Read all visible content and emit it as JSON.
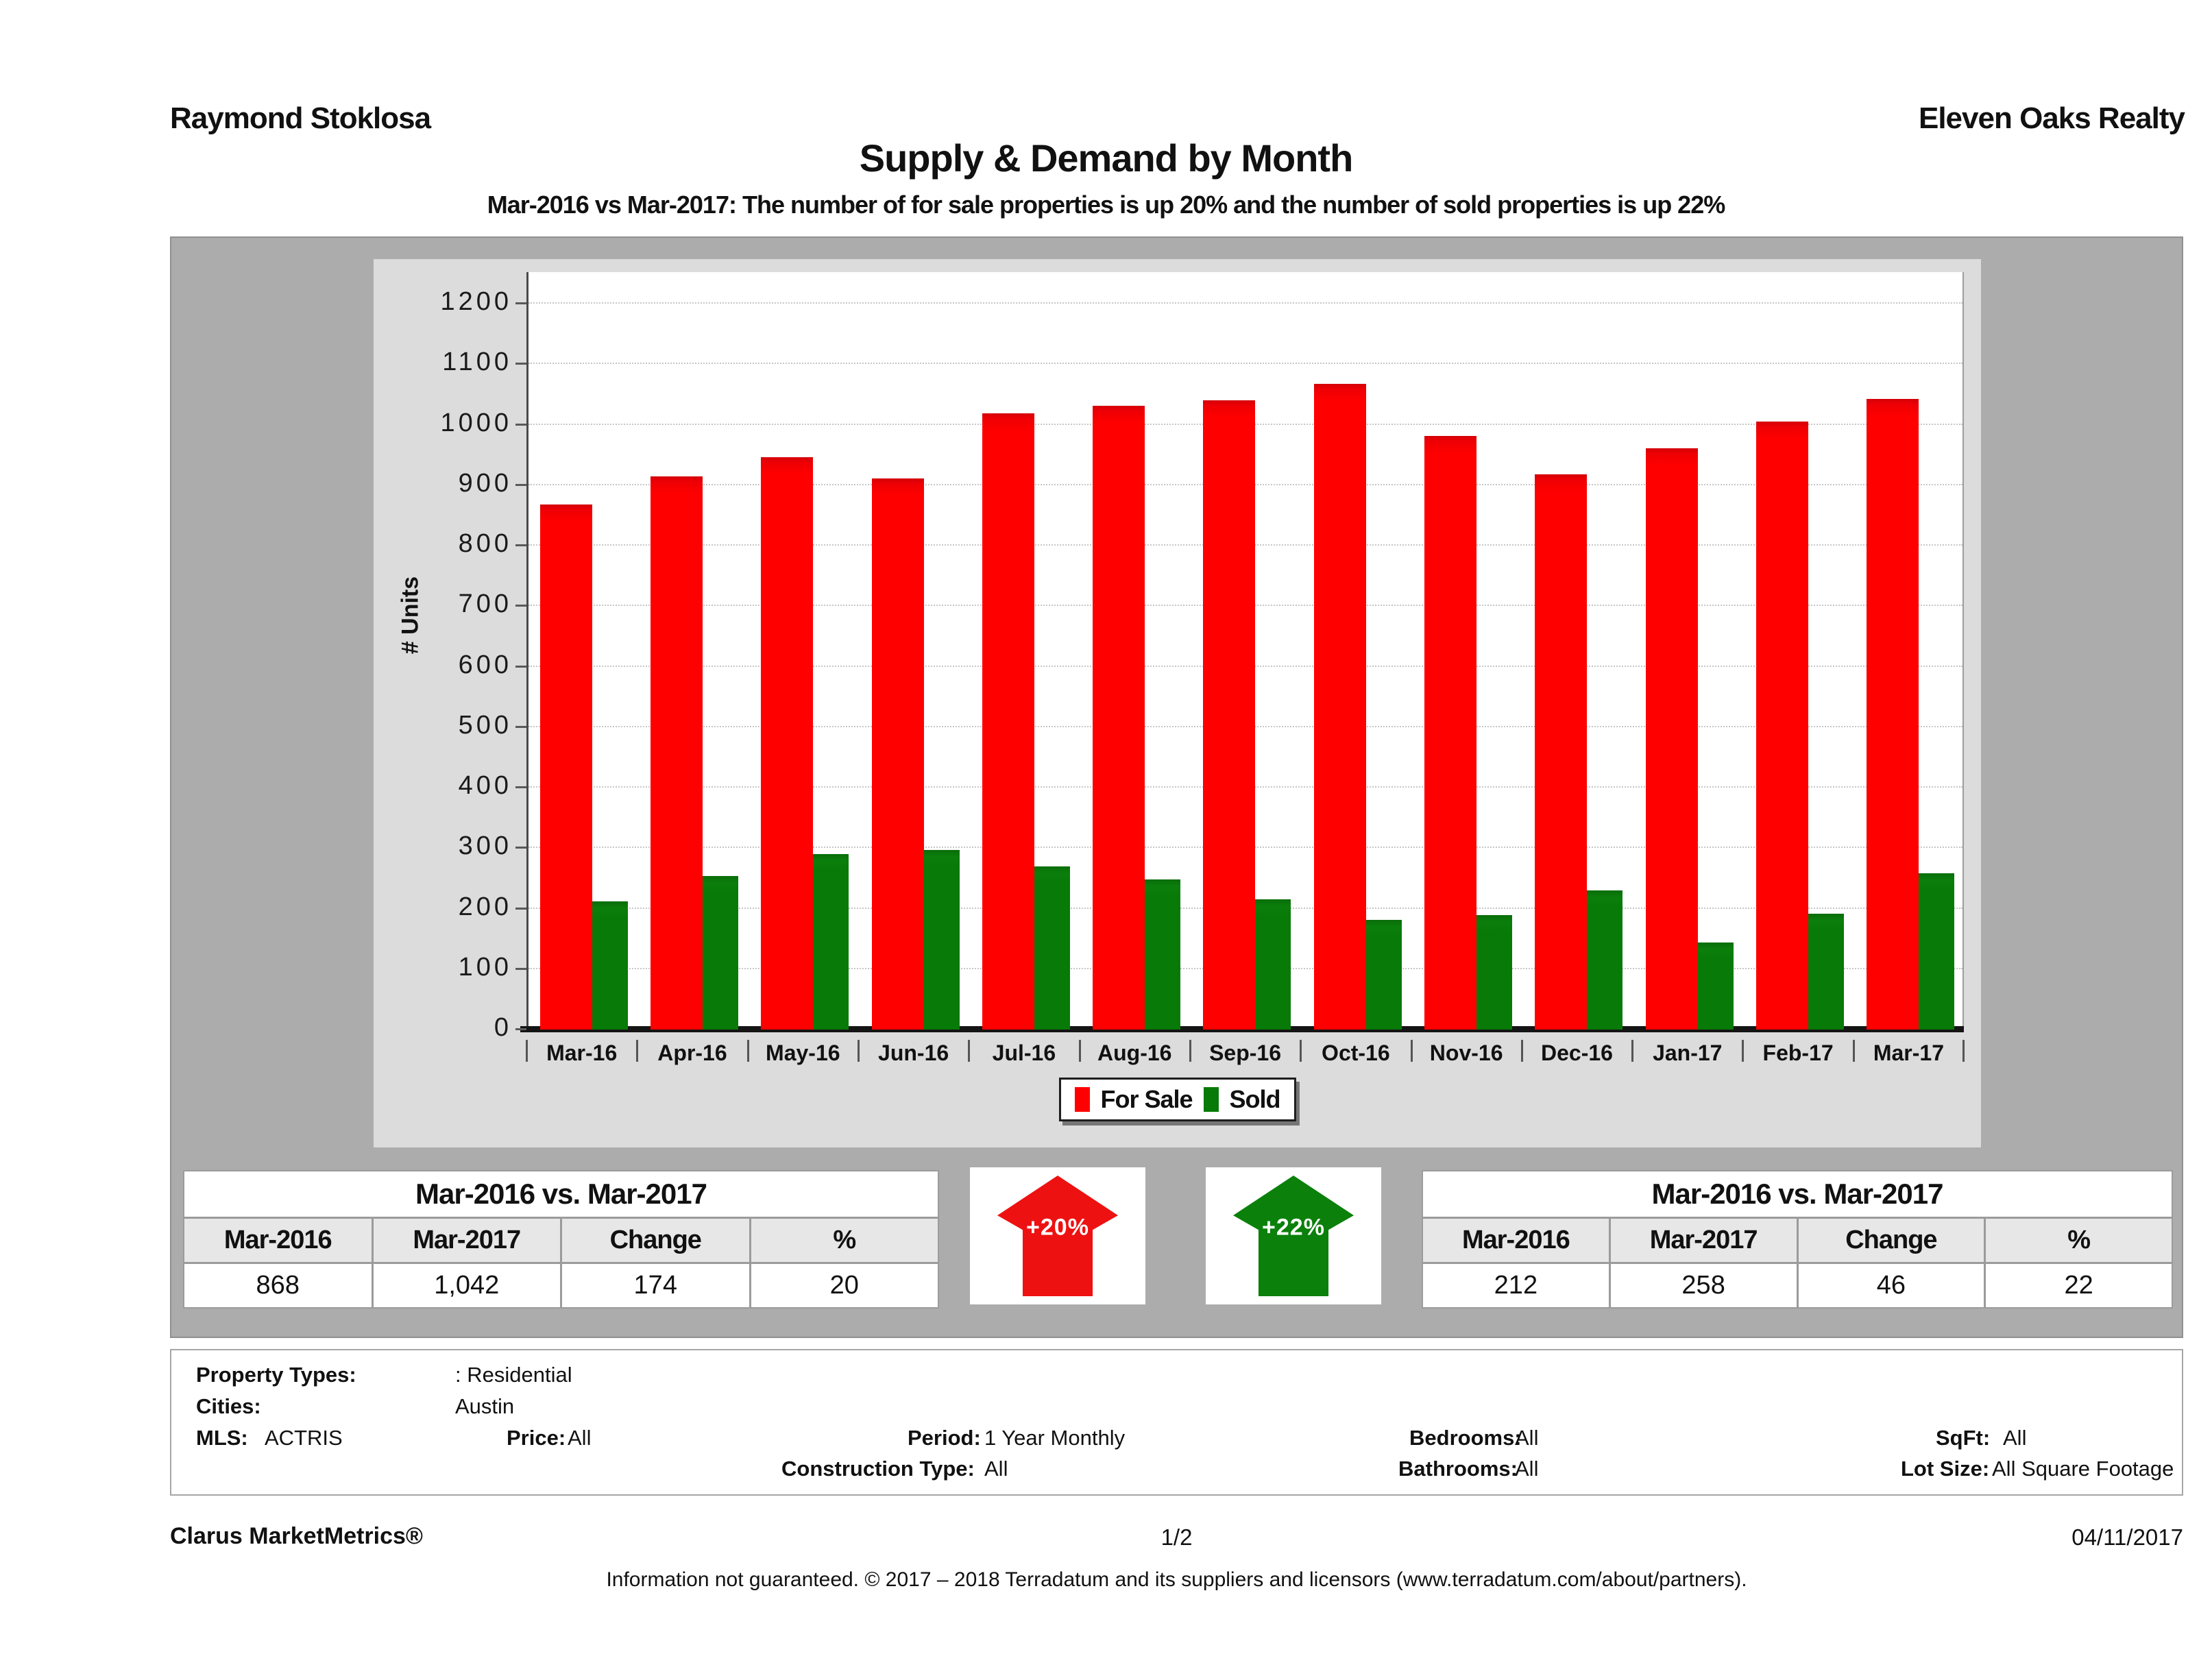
{
  "header": {
    "agent": "Raymond Stoklosa",
    "brokerage": "Eleven Oaks Realty",
    "title": "Supply & Demand by Month",
    "subtitle": "Mar-2016 vs Mar-2017: The number of for sale properties is up 20% and the number of sold properties is up 22%"
  },
  "chart_data": {
    "type": "bar",
    "title": "Supply & Demand by Month",
    "xlabel": "",
    "ylabel": "# Units",
    "ylim": [
      0,
      1200
    ],
    "yticks": [
      0,
      100,
      200,
      300,
      400,
      500,
      600,
      700,
      800,
      900,
      1000,
      1100,
      1200
    ],
    "grid": true,
    "legend_position": "bottom",
    "categories": [
      "Mar-16",
      "Apr-16",
      "May-16",
      "Jun-16",
      "Jul-16",
      "Aug-16",
      "Sep-16",
      "Oct-16",
      "Nov-16",
      "Dec-16",
      "Jan-17",
      "Feb-17",
      "Mar-17"
    ],
    "series": [
      {
        "name": "For Sale",
        "color": "#ff0000",
        "values": [
          868,
          914,
          946,
          911,
          1019,
          1031,
          1040,
          1067,
          981,
          918,
          961,
          1005,
          1042
        ]
      },
      {
        "name": "Sold",
        "color": "#077a07",
        "values": [
          212,
          254,
          290,
          297,
          270,
          248,
          215,
          181,
          189,
          230,
          144,
          192,
          258
        ]
      }
    ]
  },
  "tables": {
    "supply": {
      "title": "Mar-2016 vs. Mar-2017",
      "columns": [
        "Mar-2016",
        "Mar-2017",
        "Change",
        "%"
      ],
      "values": [
        "868",
        "1,042",
        "174",
        "20"
      ]
    },
    "demand": {
      "title": "Mar-2016 vs. Mar-2017",
      "columns": [
        "Mar-2016",
        "Mar-2017",
        "Change",
        "%"
      ],
      "values": [
        "212",
        "258",
        "46",
        "22"
      ]
    }
  },
  "arrows": {
    "supply": {
      "label": "+20%",
      "color": "#ee1111",
      "direction": "up"
    },
    "demand": {
      "label": "+22%",
      "color": "#0b800b",
      "direction": "up"
    }
  },
  "filters": {
    "property_types_label": "Property Types:",
    "property_types_value": ": Residential",
    "cities_label": "Cities:",
    "cities_value": "Austin",
    "mls_label": "MLS:",
    "mls_value": "ACTRIS",
    "price_label": "Price:",
    "price_value": "All",
    "period_label": "Period:",
    "period_value": "1 Year Monthly",
    "construction_label": "Construction Type:",
    "construction_value": "All",
    "bedrooms_label": "Bedrooms:",
    "bedrooms_value": "All",
    "bathrooms_label": "Bathrooms:",
    "bathrooms_value": "All",
    "sqft_label": "SqFt:",
    "sqft_value": "All",
    "lot_size_label": "Lot Size:",
    "lot_size_value": "All Square Footage"
  },
  "footer": {
    "brand": "Clarus MarketMetrics®",
    "page": "1/2",
    "date": "04/11/2017",
    "disclaimer": "Information not guaranteed. © 2017 – 2018 Terradatum and its suppliers and licensors (www.terradatum.com/about/partners)."
  }
}
